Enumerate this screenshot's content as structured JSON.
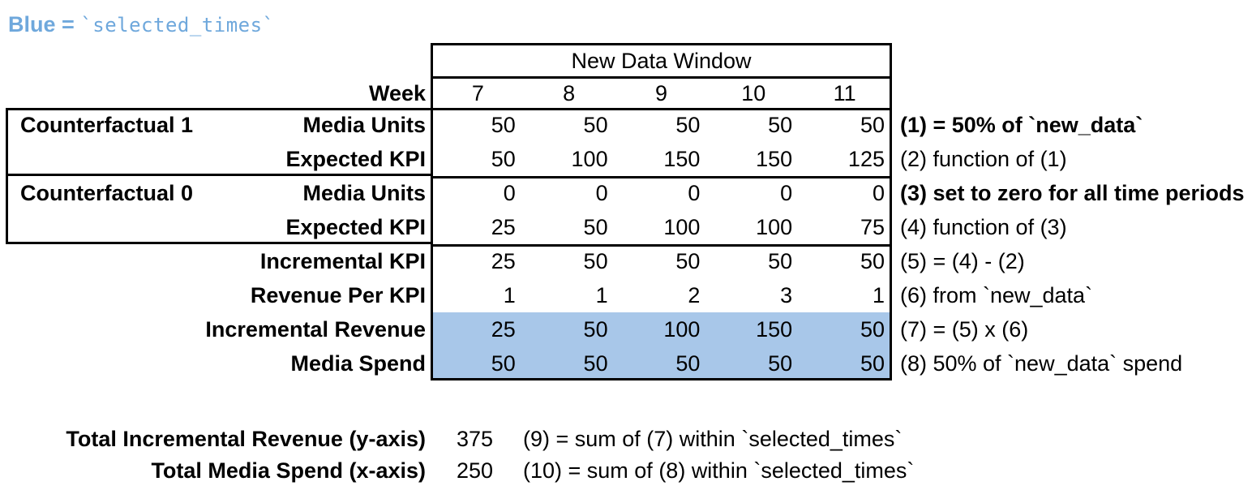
{
  "legend": {
    "prefix": "Blue =",
    "code": "`selected_times`"
  },
  "colors": {
    "legend_blue": "#6FA8DC",
    "highlight_blue": "#A8C7E9",
    "border": "#000000"
  },
  "chart_data": {
    "type": "table",
    "title": "New Data Window",
    "week_label": "Week",
    "weeks": [
      "7",
      "8",
      "9",
      "10",
      "11"
    ],
    "groups": [
      {
        "label": "Counterfactual 1"
      },
      {
        "label": "Counterfactual 0"
      }
    ],
    "rows": [
      {
        "label": "Media Units",
        "values": [
          "50",
          "50",
          "50",
          "50",
          "50"
        ],
        "note": "(1) = 50% of `new_data`",
        "note_bold": true,
        "highlighted": false,
        "group": "Counterfactual 1"
      },
      {
        "label": "Expected KPI",
        "values": [
          "50",
          "100",
          "150",
          "150",
          "125"
        ],
        "note": "(2) function of (1)",
        "note_bold": false,
        "highlighted": false,
        "group": "Counterfactual 1"
      },
      {
        "label": "Media Units",
        "values": [
          "0",
          "0",
          "0",
          "0",
          "0"
        ],
        "note": "(3) set to zero for all time periods",
        "note_bold": true,
        "highlighted": false,
        "group": "Counterfactual 0"
      },
      {
        "label": "Expected KPI",
        "values": [
          "25",
          "50",
          "100",
          "100",
          "75"
        ],
        "note": "(4) function of (3)",
        "note_bold": false,
        "highlighted": false,
        "group": "Counterfactual 0"
      },
      {
        "label": "Incremental KPI",
        "values": [
          "25",
          "50",
          "50",
          "50",
          "50"
        ],
        "note": "(5) = (4) - (2)",
        "note_bold": false,
        "highlighted": false
      },
      {
        "label": "Revenue Per KPI",
        "values": [
          "1",
          "1",
          "2",
          "3",
          "1"
        ],
        "note": "(6) from `new_data`",
        "note_bold": false,
        "highlighted": false
      },
      {
        "label": "Incremental Revenue",
        "values": [
          "25",
          "50",
          "100",
          "150",
          "50"
        ],
        "note": "(7) = (5) x (6)",
        "note_bold": false,
        "highlighted": true
      },
      {
        "label": "Media Spend",
        "values": [
          "50",
          "50",
          "50",
          "50",
          "50"
        ],
        "note": "(8) 50% of `new_data` spend",
        "note_bold": false,
        "highlighted": true
      }
    ],
    "totals": [
      {
        "label": "Total Incremental Revenue (y-axis)",
        "value": "375",
        "note": "(9) = sum of (7) within `selected_times`"
      },
      {
        "label": "Total Media Spend (x-axis)",
        "value": "250",
        "note": "(10) = sum of (8) within `selected_times`"
      }
    ]
  }
}
